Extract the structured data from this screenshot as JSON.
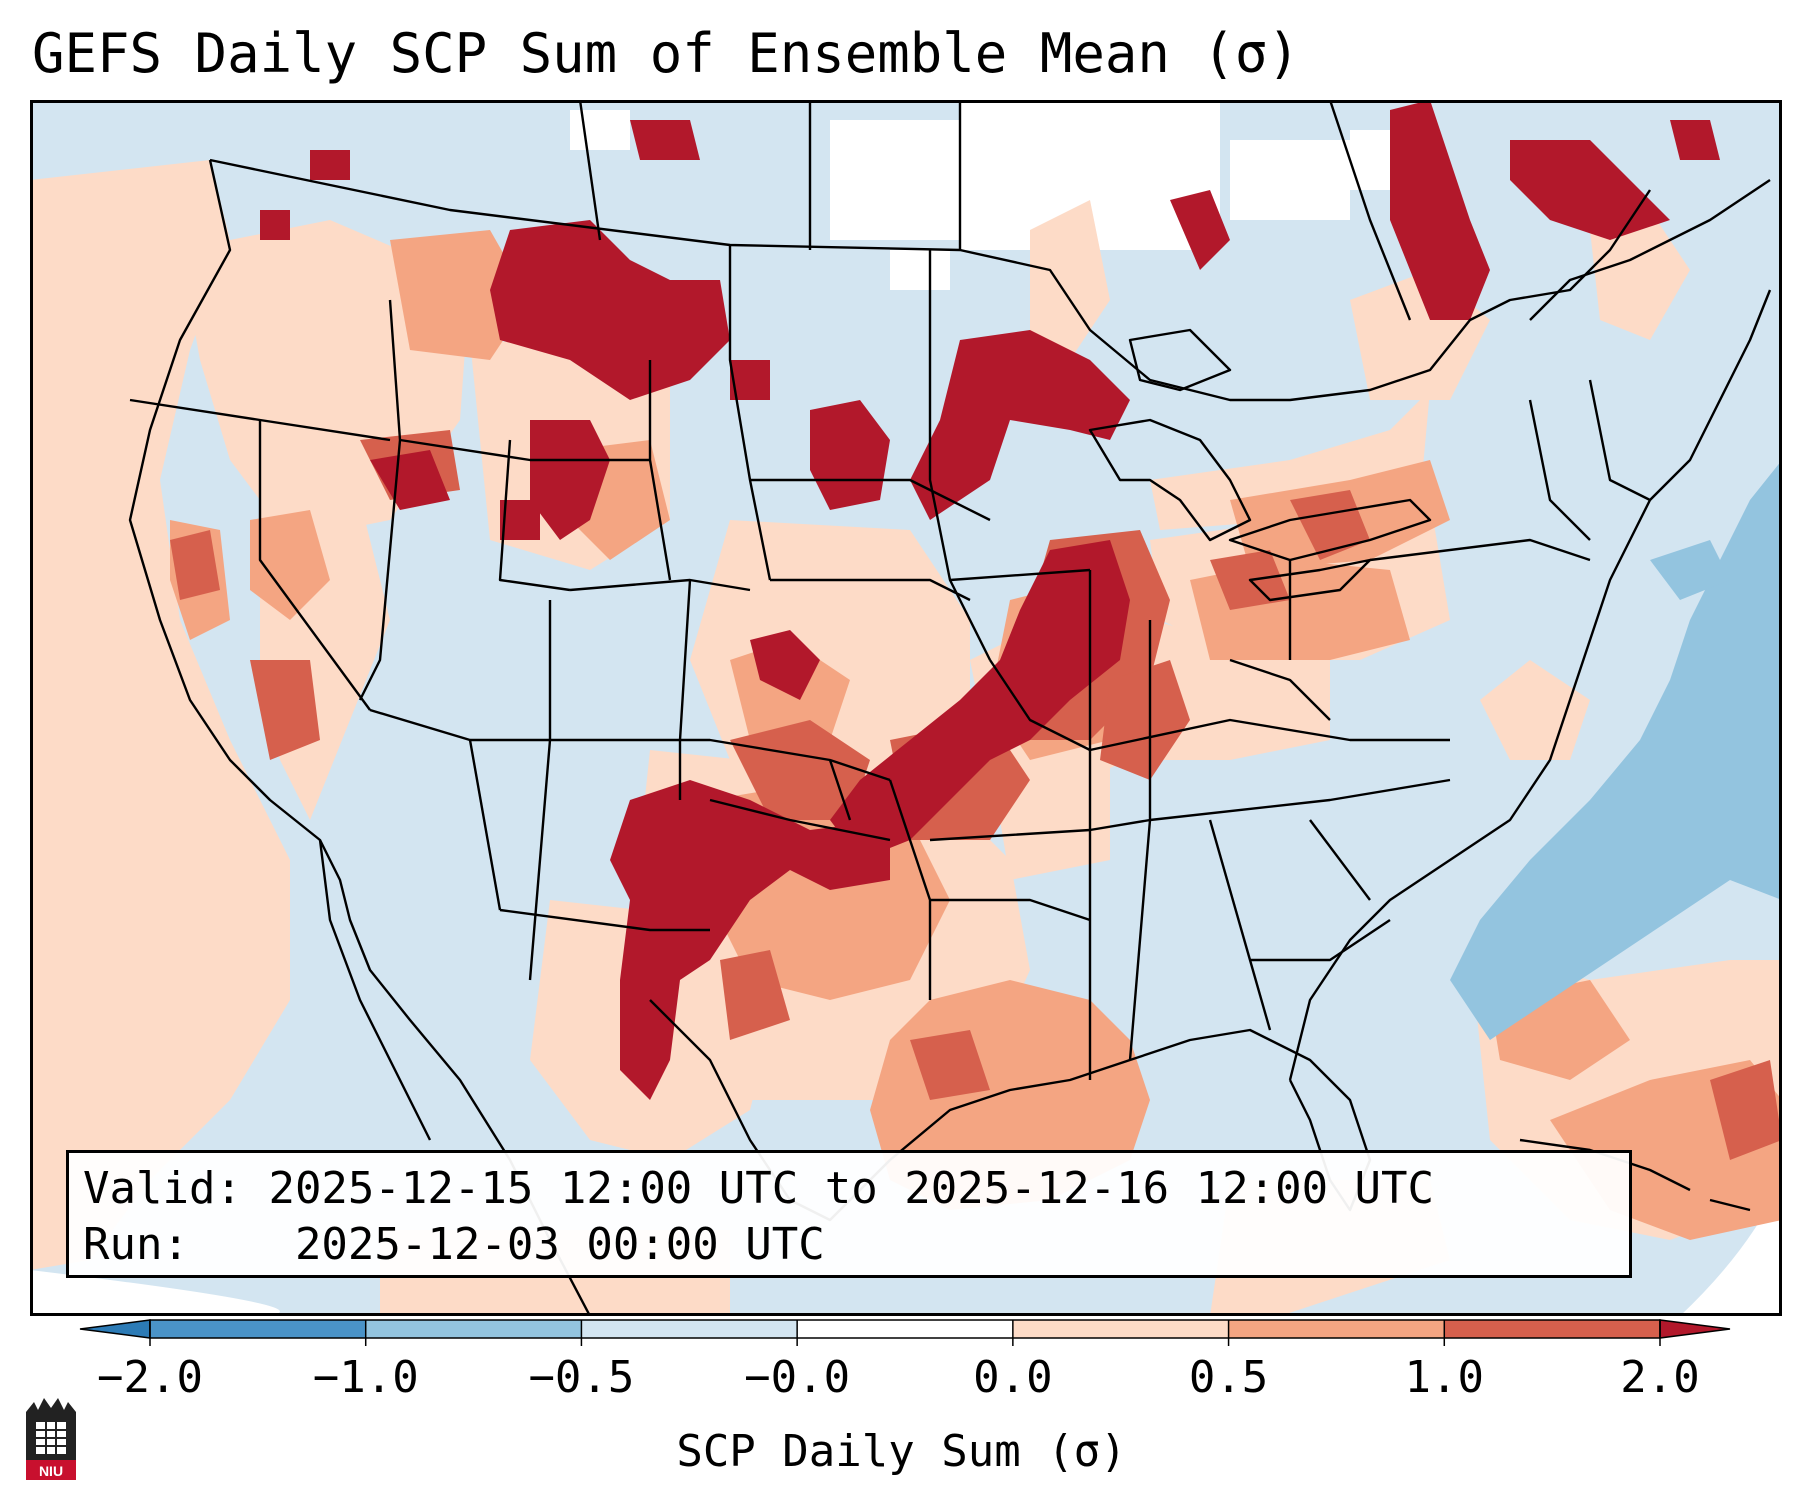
{
  "title": "GEFS Daily SCP Sum of Ensemble Mean (σ)",
  "info": {
    "valid_label": "Valid:",
    "valid_value": "2025-12-15 12:00 UTC to 2025-12-16 12:00 UTC",
    "run_label": "Run:",
    "run_value": "2025-12-03 00:00 UTC"
  },
  "colorbar": {
    "label": "SCP Daily Sum (σ)",
    "ticks": [
      "−2.0",
      "−1.0",
      "−0.5",
      "−0.0",
      "0.0",
      "0.5",
      "1.0",
      "2.0"
    ],
    "bins": [
      {
        "range": "< -2.0",
        "color": "#2c7bb6"
      },
      {
        "range": "-2.0 to -1.0",
        "color": "#4a93c8"
      },
      {
        "range": "-1.0 to -0.5",
        "color": "#93c4df"
      },
      {
        "range": "-0.5 to -0.0",
        "color": "#d3e5f1"
      },
      {
        "range": "-0.0 to 0.0",
        "color": "#ffffff"
      },
      {
        "range": "0.0 to 0.5",
        "color": "#fddbc7"
      },
      {
        "range": "0.5 to 1.0",
        "color": "#f4a582"
      },
      {
        "range": "1.0 to 2.0",
        "color": "#d6604d"
      },
      {
        "range": "> 2.0",
        "color": "#b2182b"
      }
    ]
  },
  "map_regions": [
    {
      "name": "ozarks-to-ohio-valley-corridor",
      "level": "> 2.0"
    },
    {
      "name": "western-oklahoma-north-texas",
      "level": "> 2.0"
    },
    {
      "name": "montana-high-plains",
      "level": "> 2.0"
    },
    {
      "name": "south-dakota-nebraska",
      "level": "> 2.0"
    },
    {
      "name": "upper-midwest-wisconsin",
      "level": "> 2.0"
    },
    {
      "name": "quebec-ontario",
      "level": "> 2.0"
    },
    {
      "name": "indiana-ohio",
      "level": "1.0 to 2.0"
    },
    {
      "name": "gulf-of-mexico",
      "level": "0.5 to 1.0"
    },
    {
      "name": "west-coast",
      "level": "0.0 to 0.5"
    },
    {
      "name": "atlantic-offshore",
      "level": "-1.0 to -0.5"
    },
    {
      "name": "southeast-us",
      "level": "-0.5 to -0.0"
    },
    {
      "name": "northern-plains-canada",
      "level": "-0.0 to 0.0"
    }
  ],
  "logo": {
    "text": "NIU"
  }
}
